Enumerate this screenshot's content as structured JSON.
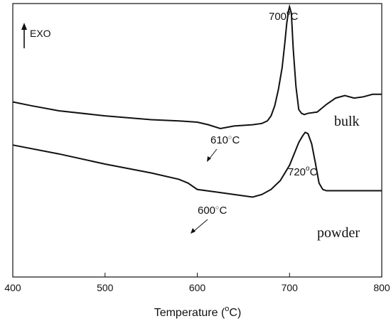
{
  "chart_data": {
    "type": "line",
    "xlabel": "Temperature (°C)",
    "xlabel_main": "Temperature (",
    "xlabel_sup": "o",
    "xlabel_end": "C)",
    "xlim": [
      400,
      800
    ],
    "xticks": [
      "400",
      "500",
      "600",
      "700",
      "800"
    ],
    "y_ticks_shown": false,
    "grid": false,
    "exo_indicator": "EXO",
    "series": [
      {
        "name": "bulk",
        "x": [
          400,
          420,
          450,
          500,
          550,
          580,
          600,
          612,
          625,
          640,
          660,
          670,
          676,
          680,
          684,
          688,
          692,
          695,
          697,
          699,
          700,
          702,
          704,
          707,
          710,
          713,
          716,
          720,
          730,
          740,
          750,
          760,
          770,
          780,
          790,
          800
        ],
        "y": [
          0.58,
          0.55,
          0.51,
          0.47,
          0.44,
          0.43,
          0.42,
          0.4,
          0.37,
          0.39,
          0.4,
          0.41,
          0.43,
          0.47,
          0.55,
          0.68,
          0.85,
          1.05,
          1.2,
          1.3,
          1.33,
          1.28,
          1.0,
          0.7,
          0.52,
          0.49,
          0.48,
          0.49,
          0.5,
          0.56,
          0.61,
          0.63,
          0.61,
          0.62,
          0.64,
          0.64
        ]
      },
      {
        "name": "powder",
        "x": [
          400,
          450,
          500,
          550,
          580,
          590,
          600,
          620,
          640,
          660,
          670,
          680,
          690,
          700,
          705,
          710,
          714,
          717,
          720,
          724,
          728,
          732,
          736,
          740,
          750,
          760,
          780,
          800
        ],
        "y": [
          0.24,
          0.17,
          0.09,
          0.02,
          -0.03,
          -0.06,
          -0.11,
          -0.13,
          -0.15,
          -0.17,
          -0.15,
          -0.11,
          -0.04,
          0.08,
          0.17,
          0.26,
          0.31,
          0.34,
          0.33,
          0.25,
          0.1,
          -0.06,
          -0.11,
          -0.12,
          -0.12,
          -0.12,
          -0.12,
          -0.12
        ]
      }
    ],
    "annotations": [
      {
        "text": "700°C",
        "main": "700",
        "sup": "o",
        "end": "C",
        "x": 700,
        "y": 1.33
      },
      {
        "text": "610°C",
        "main": "610",
        "sup": "○",
        "end": "C",
        "x": 612,
        "y": 0.4
      },
      {
        "text": "720°C",
        "main": "720",
        "sup": "o",
        "end": "C",
        "x": 717,
        "y": 0.34
      },
      {
        "text": "600°C",
        "main": "600",
        "sup": "○",
        "end": "C",
        "x": 593,
        "y": -0.06
      }
    ]
  }
}
